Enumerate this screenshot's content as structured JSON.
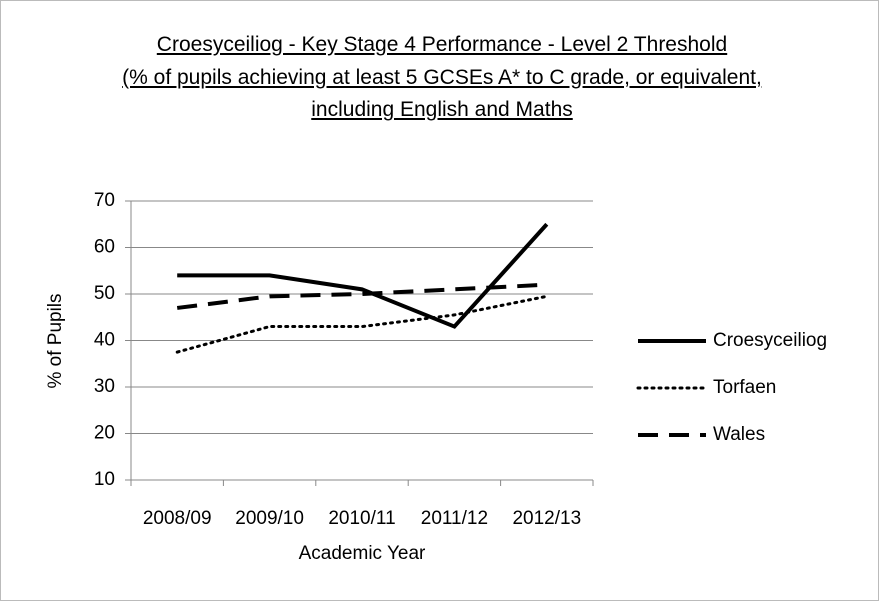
{
  "chart_data": {
    "type": "line",
    "title": "Croesyceiliog - Key Stage 4 Performance - Level 2 Threshold",
    "subtitle": "(% of pupils achieving at least 5 GCSEs A* to C grade, or equivalent, including English and Maths",
    "x_label": "Academic Year",
    "y_label": "% of Pupils",
    "categories": [
      "2008/09",
      "2009/10",
      "2010/11",
      "2011/12",
      "2012/13"
    ],
    "series": [
      {
        "name": "Croesyceiliog",
        "color": "#000000",
        "style": "solid",
        "values": [
          54,
          54,
          51,
          43,
          65
        ]
      },
      {
        "name": "Torfaen",
        "color": "#000000",
        "style": "dotted",
        "values": [
          37.5,
          43,
          43,
          45.5,
          49.5
        ]
      },
      {
        "name": "Wales",
        "color": "#000000",
        "style": "dashed",
        "values": [
          47,
          49.5,
          50,
          51,
          52
        ]
      }
    ],
    "ylim": [
      10,
      70
    ],
    "yticks": [
      10,
      20,
      30,
      40,
      50,
      60,
      70
    ],
    "grid": true,
    "legend": "right"
  }
}
